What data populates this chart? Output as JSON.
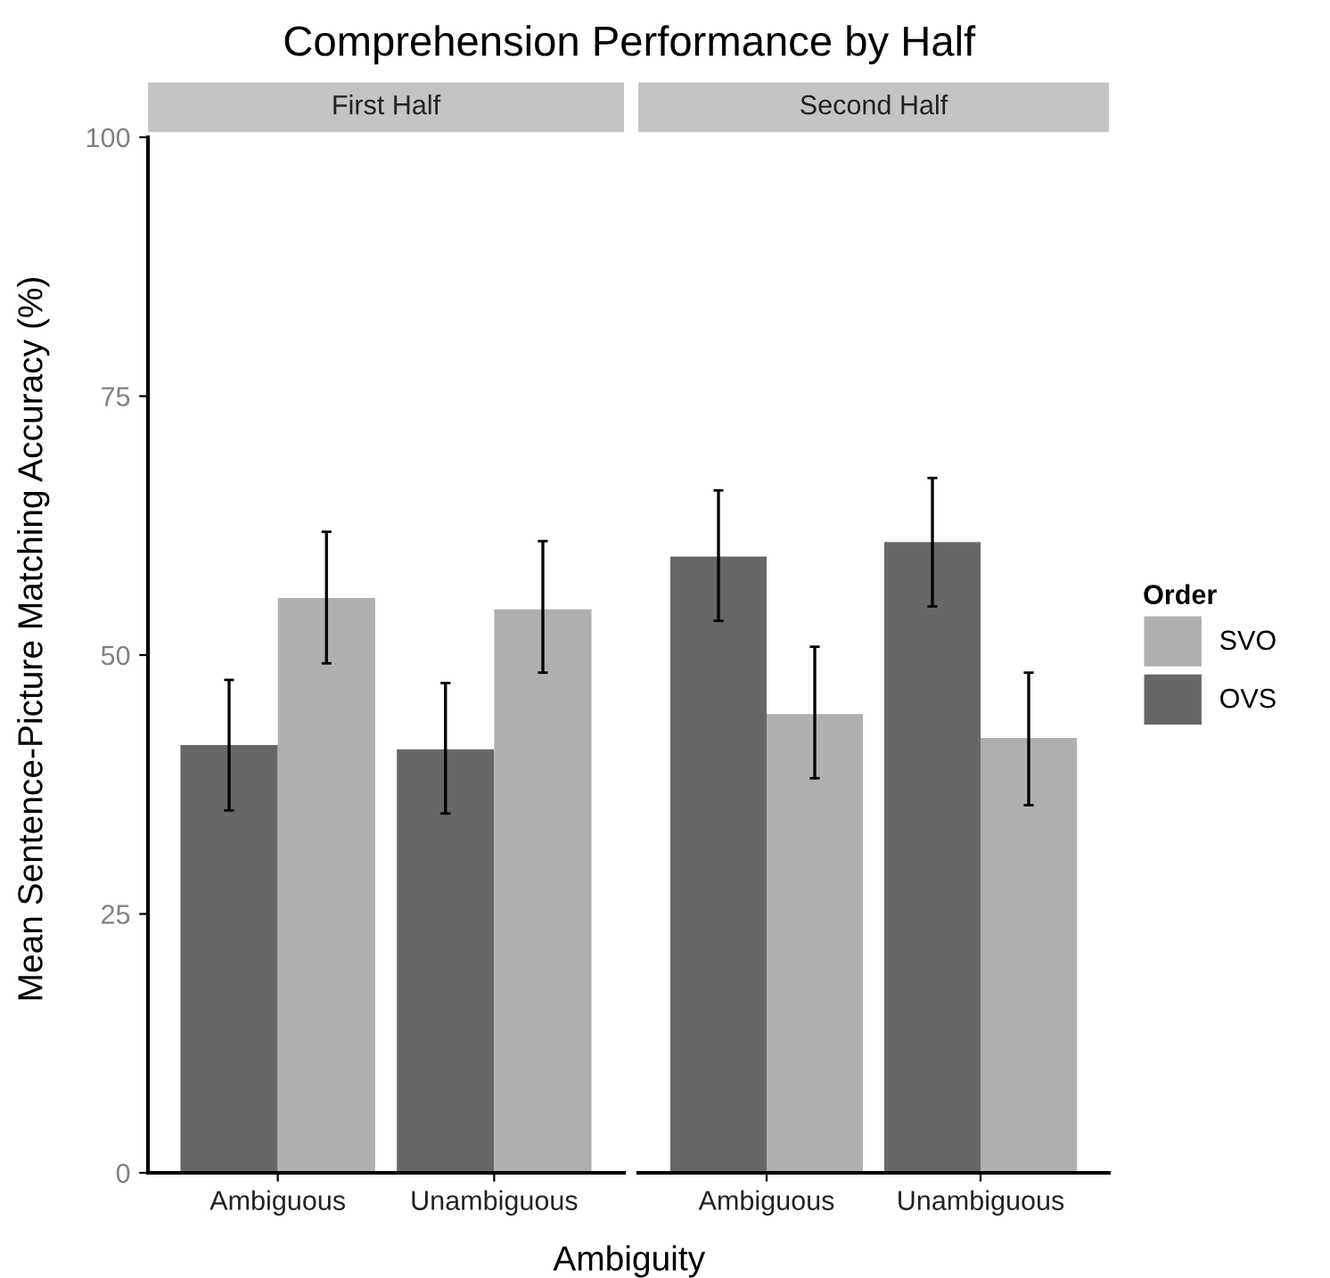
{
  "chart_data": [
    {
      "type": "bar",
      "title": "Comprehension Performance by Half",
      "subtitle": "First Half",
      "xlabel": "Ambiguity",
      "ylabel": "Mean Sentence-Picture Matching Accuracy (%)",
      "categories": [
        "Ambiguous",
        "Unambiguous"
      ],
      "ylim": [
        0,
        100
      ],
      "yticks": [
        0,
        25,
        50,
        75,
        100
      ],
      "grid": false,
      "legend": false,
      "series": [
        {
          "color": "#676767",
          "values": [
            41.3,
            40.9
          ],
          "errors": [
            [
              35.0,
              47.6
            ],
            [
              34.7,
              47.3
            ]
          ]
        },
        {
          "color": "#b0b0b0",
          "values": [
            55.5,
            54.4
          ],
          "errors": [
            [
              49.2,
              61.9
            ],
            [
              48.3,
              61.0
            ]
          ]
        }
      ]
    },
    {
      "type": "bar",
      "subtitle": "Second Half",
      "categories": [
        "Ambiguous",
        "Unambiguous"
      ],
      "ylim": [
        0,
        100
      ],
      "yticks": [
        0,
        25,
        50,
        75,
        100
      ],
      "tick_labels": "x",
      "grid": false,
      "legend": "right",
      "legend_title": "Order",
      "series": [
        {
          "name": "OVS",
          "color": "#676767",
          "values": [
            59.5,
            60.9
          ],
          "errors": [
            [
              53.3,
              65.9
            ],
            [
              54.7,
              67.1
            ]
          ]
        },
        {
          "name": "SVO",
          "color": "#b0b0b0",
          "values": [
            44.3,
            42.0
          ],
          "errors": [
            [
              38.1,
              50.8
            ],
            [
              35.5,
              48.3
            ]
          ]
        }
      ]
    }
  ]
}
